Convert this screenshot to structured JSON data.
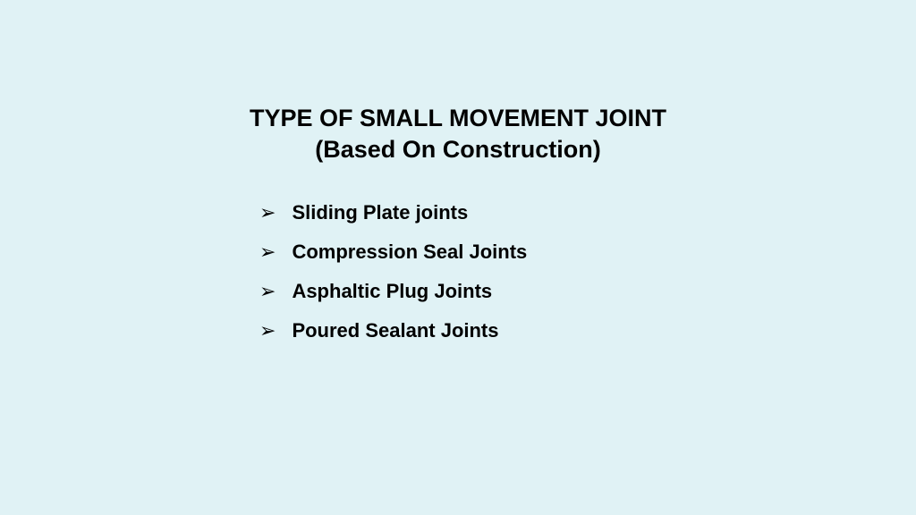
{
  "slide": {
    "background_color": "#e0f2f5",
    "title": {
      "line1": "TYPE OF SMALL MOVEMENT JOINT",
      "line2": "(Based On Construction)",
      "fontsize": 27,
      "fontweight": "bold",
      "color": "#000000"
    },
    "bullet_glyph": "➢",
    "bullet_color": "#000000",
    "items": [
      "Sliding Plate joints",
      "Compression Seal Joints",
      "Asphaltic Plug Joints",
      "Poured Sealant Joints"
    ],
    "item_fontsize": 22,
    "item_fontweight": "bold",
    "item_color": "#000000"
  }
}
